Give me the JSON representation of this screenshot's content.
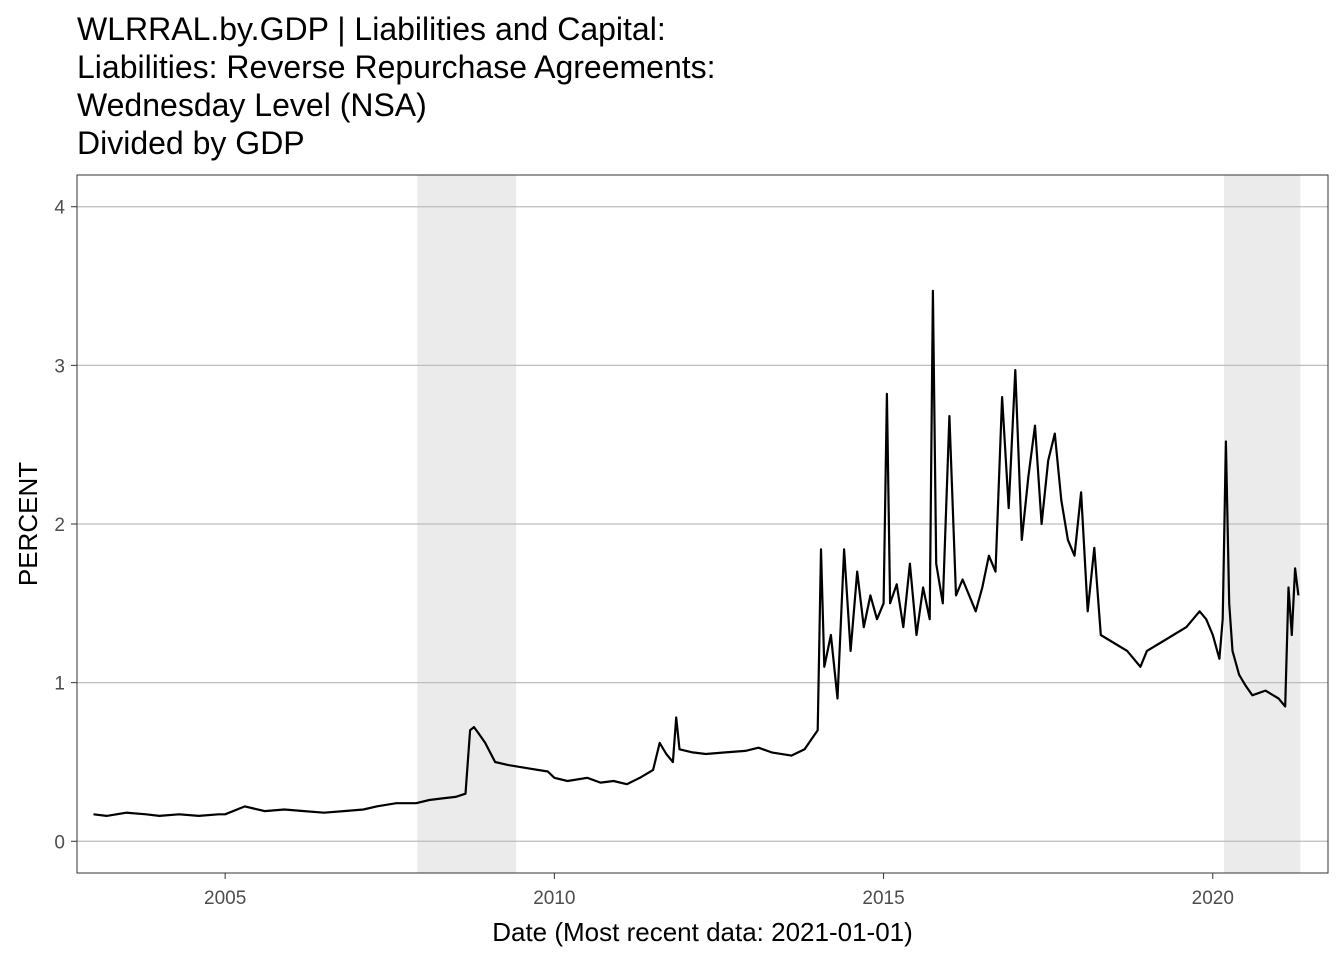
{
  "chart_data": {
    "type": "line",
    "title_lines": [
      "WLRRAL.by.GDP | Liabilities and Capital:",
      "Liabilities: Reverse Repurchase Agreements:",
      "Wednesday Level (NSA)",
      "Divided by GDP"
    ],
    "xlabel": "Date (Most recent data: 2021-01-01)",
    "ylabel": "PERCENT",
    "xlim": [
      2002.75,
      2021.75
    ],
    "ylim": [
      -0.2,
      4.2
    ],
    "x_ticks": [
      2005,
      2010,
      2015,
      2020
    ],
    "y_ticks": [
      0,
      1,
      2,
      3,
      4
    ],
    "grid": true,
    "recessions": [
      [
        2007.92,
        2009.42
      ],
      [
        2020.17,
        2021.33
      ]
    ],
    "series": [
      {
        "color": "#000000",
        "x": [
          2003.0,
          2003.2,
          2003.5,
          2003.8,
          2004.0,
          2004.3,
          2004.6,
          2004.9,
          2005.0,
          2005.3,
          2005.6,
          2005.9,
          2006.2,
          2006.5,
          2006.8,
          2007.1,
          2007.3,
          2007.6,
          2007.9,
          2008.1,
          2008.3,
          2008.5,
          2008.65,
          2008.72,
          2008.78,
          2008.85,
          2008.95,
          2009.1,
          2009.3,
          2009.6,
          2009.9,
          2010.0,
          2010.2,
          2010.5,
          2010.7,
          2010.9,
          2011.1,
          2011.3,
          2011.5,
          2011.6,
          2011.7,
          2011.8,
          2011.85,
          2011.9,
          2012.1,
          2012.3,
          2012.6,
          2012.9,
          2013.1,
          2013.3,
          2013.6,
          2013.8,
          2013.9,
          2014.0,
          2014.05,
          2014.1,
          2014.2,
          2014.3,
          2014.4,
          2014.5,
          2014.6,
          2014.7,
          2014.8,
          2014.9,
          2015.0,
          2015.05,
          2015.1,
          2015.2,
          2015.3,
          2015.4,
          2015.5,
          2015.6,
          2015.7,
          2015.75,
          2015.8,
          2015.9,
          2016.0,
          2016.1,
          2016.2,
          2016.3,
          2016.4,
          2016.5,
          2016.6,
          2016.7,
          2016.8,
          2016.9,
          2017.0,
          2017.1,
          2017.2,
          2017.3,
          2017.4,
          2017.5,
          2017.6,
          2017.7,
          2017.8,
          2017.9,
          2018.0,
          2018.1,
          2018.2,
          2018.3,
          2018.5,
          2018.7,
          2018.9,
          2019.0,
          2019.2,
          2019.4,
          2019.6,
          2019.8,
          2019.9,
          2020.0,
          2020.1,
          2020.15,
          2020.2,
          2020.25,
          2020.3,
          2020.4,
          2020.5,
          2020.6,
          2020.8,
          2021.0,
          2021.1,
          2021.15,
          2021.2,
          2021.25,
          2021.3
        ],
        "y": [
          0.17,
          0.16,
          0.18,
          0.17,
          0.16,
          0.17,
          0.16,
          0.17,
          0.17,
          0.22,
          0.19,
          0.2,
          0.19,
          0.18,
          0.19,
          0.2,
          0.22,
          0.24,
          0.24,
          0.26,
          0.27,
          0.28,
          0.3,
          0.7,
          0.72,
          0.68,
          0.62,
          0.5,
          0.48,
          0.46,
          0.44,
          0.4,
          0.38,
          0.4,
          0.37,
          0.38,
          0.36,
          0.4,
          0.45,
          0.62,
          0.55,
          0.5,
          0.78,
          0.58,
          0.56,
          0.55,
          0.56,
          0.57,
          0.59,
          0.56,
          0.54,
          0.58,
          0.64,
          0.7,
          1.84,
          1.1,
          1.3,
          0.9,
          1.84,
          1.2,
          1.7,
          1.35,
          1.55,
          1.4,
          1.5,
          2.82,
          1.5,
          1.62,
          1.35,
          1.75,
          1.3,
          1.6,
          1.4,
          3.47,
          1.75,
          1.5,
          2.68,
          1.55,
          1.65,
          1.55,
          1.45,
          1.6,
          1.8,
          1.7,
          2.8,
          2.1,
          2.97,
          1.9,
          2.3,
          2.62,
          2.0,
          2.4,
          2.57,
          2.15,
          1.9,
          1.8,
          2.2,
          1.45,
          1.85,
          1.3,
          1.25,
          1.2,
          1.1,
          1.2,
          1.25,
          1.3,
          1.35,
          1.45,
          1.4,
          1.3,
          1.15,
          1.4,
          2.52,
          1.5,
          1.2,
          1.05,
          0.98,
          0.92,
          0.95,
          0.9,
          0.85,
          1.6,
          1.3,
          1.72,
          1.55
        ]
      }
    ]
  }
}
